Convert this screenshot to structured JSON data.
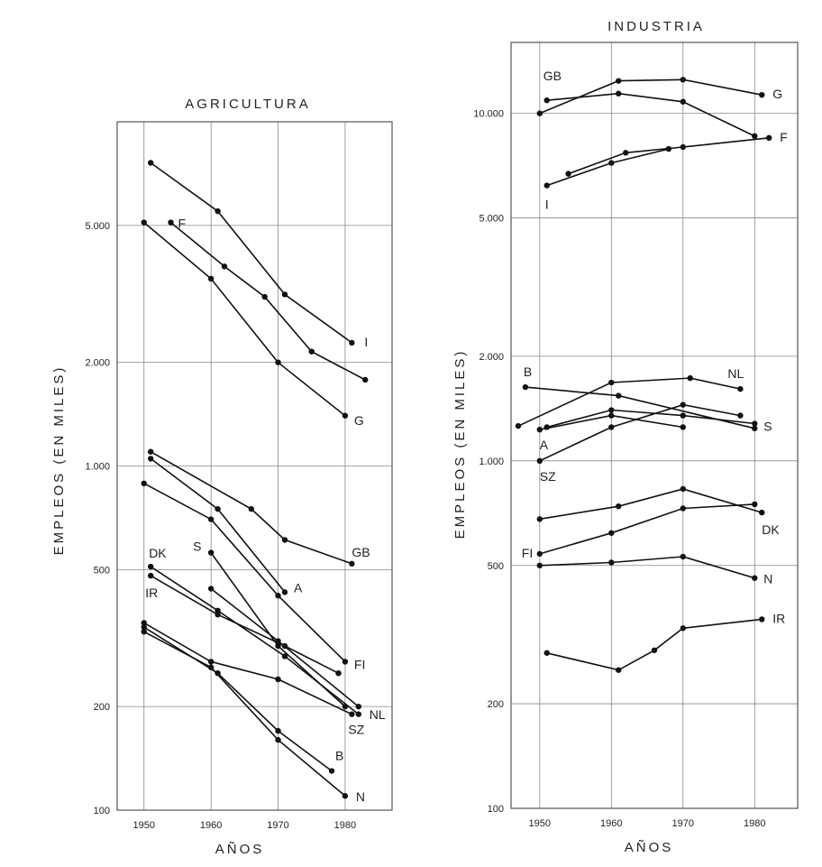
{
  "chart_data": [
    {
      "type": "line",
      "title": "AGRICULTURA",
      "xlabel": "AÑOS",
      "ylabel": "EMPLEOS (EN MILES)",
      "yscale": "log",
      "ylim": [
        100,
        10000
      ],
      "xlim": [
        1946,
        1987
      ],
      "xticks": [
        "1950",
        "1960",
        "1970",
        "1980"
      ],
      "yticks": [
        "100",
        "200",
        "500",
        "1.000",
        "2.000",
        "5.000"
      ],
      "grid": true,
      "series": [
        {
          "name": "I",
          "x": [
            1951,
            1961,
            1971,
            1981
          ],
          "y": [
            7600,
            5500,
            3150,
            2280
          ]
        },
        {
          "name": "F",
          "x": [
            1954,
            1962,
            1968,
            1975,
            1983
          ],
          "y": [
            5100,
            3800,
            3100,
            2150,
            1780
          ]
        },
        {
          "name": "G",
          "x": [
            1950,
            1960,
            1970,
            1980
          ],
          "y": [
            5100,
            3500,
            2000,
            1400
          ]
        },
        {
          "name": "GB",
          "x": [
            1951,
            1966,
            1971,
            1981
          ],
          "y": [
            1100,
            750,
            610,
            520
          ]
        },
        {
          "name": "A",
          "x": [
            1951,
            1961,
            1971
          ],
          "y": [
            1050,
            750,
            430
          ]
        },
        {
          "name": "FI",
          "x": [
            1950,
            1960,
            1970,
            1980
          ],
          "y": [
            890,
            700,
            420,
            270
          ]
        },
        {
          "name": "S",
          "x": [
            1960,
            1970,
            1980
          ],
          "y": [
            560,
            300,
            200
          ]
        },
        {
          "name": "DK",
          "x": [
            1951,
            1961,
            1971,
            1982
          ],
          "y": [
            510,
            380,
            280,
            190
          ]
        },
        {
          "name": "IR",
          "x": [
            1951,
            1961,
            1971,
            1979
          ],
          "y": [
            480,
            370,
            300,
            250
          ]
        },
        {
          "name": "NL",
          "x": [
            1960,
            1970,
            1982
          ],
          "y": [
            440,
            310,
            200
          ]
        },
        {
          "name": "SZ",
          "x": [
            1950,
            1960,
            1970,
            1981
          ],
          "y": [
            350,
            270,
            240,
            190
          ]
        },
        {
          "name": "B",
          "x": [
            1950,
            1961,
            1970,
            1978
          ],
          "y": [
            340,
            250,
            170,
            130
          ]
        },
        {
          "name": "N",
          "x": [
            1950,
            1960,
            1970,
            1980
          ],
          "y": [
            330,
            260,
            160,
            110
          ]
        }
      ]
    },
    {
      "type": "line",
      "title": "INDUSTRIA",
      "xlabel": "AÑOS",
      "ylabel": "EMPLEOS (EN MILES)",
      "yscale": "log",
      "ylim": [
        100,
        16000
      ],
      "xlim": [
        1946,
        1986
      ],
      "xticks": [
        "1950",
        "1960",
        "1970",
        "1980"
      ],
      "yticks": [
        "100",
        "200",
        "500",
        "1.000",
        "2.000",
        "5.000",
        "10.000"
      ],
      "grid": true,
      "series": [
        {
          "name": "G",
          "x": [
            1950,
            1961,
            1970,
            1981
          ],
          "y": [
            10000,
            12400,
            12500,
            11300
          ]
        },
        {
          "name": "GB",
          "x": [
            1951,
            1961,
            1970,
            1980
          ],
          "y": [
            10900,
            11400,
            10800,
            8600
          ]
        },
        {
          "name": "F",
          "x": [
            1954,
            1962,
            1970,
            1982
          ],
          "y": [
            6700,
            7700,
            8000,
            8500
          ]
        },
        {
          "name": "I",
          "x": [
            1951,
            1960,
            1968
          ],
          "y": [
            6200,
            7200,
            7900
          ]
        },
        {
          "name": "B",
          "x": [
            1948,
            1961,
            1980
          ],
          "y": [
            1630,
            1540,
            1240
          ]
        },
        {
          "name": "NL",
          "x": [
            1947,
            1960,
            1971,
            1978
          ],
          "y": [
            1260,
            1680,
            1730,
            1610
          ]
        },
        {
          "name": "S",
          "x": [
            1951,
            1960,
            1970,
            1980
          ],
          "y": [
            1250,
            1400,
            1350,
            1280
          ]
        },
        {
          "name": "A",
          "x": [
            1950,
            1960,
            1970
          ],
          "y": [
            1230,
            1350,
            1250
          ]
        },
        {
          "name": "SZ",
          "x": [
            1950,
            1960,
            1970,
            1978
          ],
          "y": [
            1000,
            1250,
            1450,
            1350
          ]
        },
        {
          "name": "DK",
          "x": [
            1950,
            1961,
            1970,
            1981
          ],
          "y": [
            680,
            740,
            830,
            710
          ]
        },
        {
          "name": "FI",
          "x": [
            1950,
            1960,
            1970,
            1980
          ],
          "y": [
            540,
            620,
            730,
            750
          ]
        },
        {
          "name": "N",
          "x": [
            1950,
            1960,
            1970,
            1980
          ],
          "y": [
            500,
            510,
            530,
            460
          ]
        },
        {
          "name": "IR",
          "x": [
            1951,
            1961,
            1966,
            1970,
            1981
          ],
          "y": [
            280,
            250,
            285,
            330,
            350
          ]
        }
      ]
    }
  ]
}
